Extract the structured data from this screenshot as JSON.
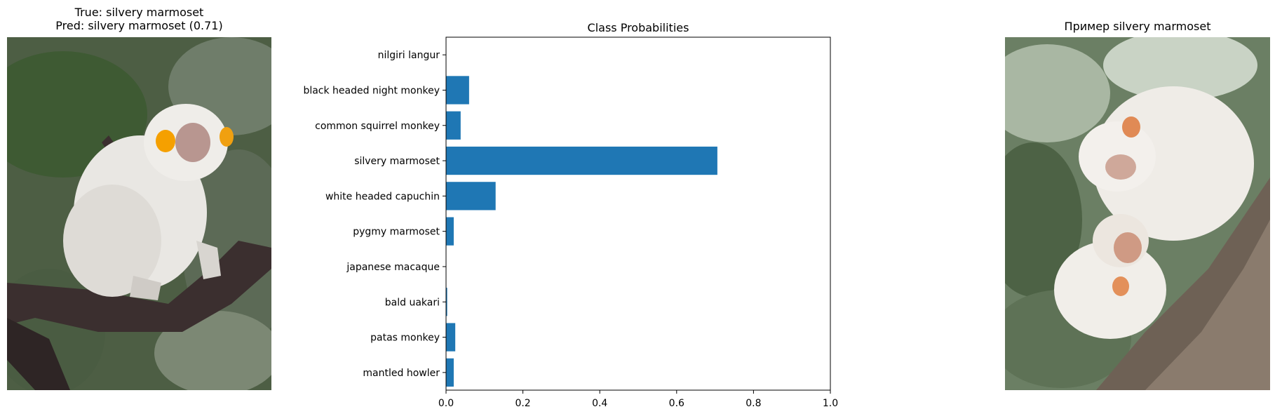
{
  "left_panel": {
    "title_line1": "True: silvery marmoset",
    "title_line2": "Pred: silvery marmoset (0.71)"
  },
  "right_panel": {
    "title": "Пример silvery marmoset"
  },
  "chart_data": {
    "type": "bar",
    "orientation": "horizontal",
    "title": "Class Probabilities",
    "xlabel": "",
    "ylabel": "",
    "xlim": [
      0,
      1.0
    ],
    "xticks": [
      "0.0",
      "0.2",
      "0.4",
      "0.6",
      "0.8",
      "1.0"
    ],
    "categories": [
      "nilgiri langur",
      "black headed night monkey",
      "common squirrel monkey",
      "silvery marmoset",
      "white headed capuchin",
      "pygmy marmoset",
      "japanese macaque",
      "bald uakari",
      "patas monkey",
      "mantled howler"
    ],
    "values": [
      0.0,
      0.06,
      0.038,
      0.706,
      0.129,
      0.02,
      0.0,
      0.003,
      0.024,
      0.02
    ],
    "bar_color": "#1f77b4",
    "grid": false
  }
}
